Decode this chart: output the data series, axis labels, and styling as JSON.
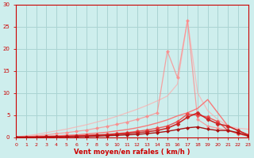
{
  "xlim": [
    0,
    23
  ],
  "ylim": [
    0,
    30
  ],
  "xlabel": "Vent moyen/en rafales ( km/h )",
  "xticks": [
    0,
    1,
    2,
    3,
    4,
    5,
    6,
    7,
    8,
    9,
    10,
    11,
    12,
    13,
    14,
    15,
    16,
    17,
    18,
    19,
    20,
    21,
    22,
    23
  ],
  "yticks": [
    0,
    5,
    10,
    15,
    20,
    25,
    30
  ],
  "bg_color": "#ceeeed",
  "grid_color": "#aad4d3",
  "lines": [
    {
      "comment": "lightest pink - broad triangle, peaks near x=17 at ~26.5, back to ~2 at x=23",
      "x": [
        0,
        1,
        2,
        3,
        4,
        5,
        6,
        7,
        8,
        9,
        10,
        11,
        12,
        13,
        14,
        15,
        16,
        17,
        18,
        19,
        20,
        21,
        22,
        23
      ],
      "y": [
        0,
        0.3,
        0.6,
        1.0,
        1.4,
        1.8,
        2.3,
        2.8,
        3.4,
        4.0,
        4.7,
        5.5,
        6.3,
        7.2,
        8.2,
        9.3,
        12.0,
        26.5,
        10.0,
        6.0,
        4.0,
        2.5,
        2.0,
        1.8
      ],
      "color": "#ffaaaa",
      "lw": 0.9,
      "marker": null,
      "alpha": 0.7
    },
    {
      "comment": "medium pink with markers - peaks at x=15 ~19.5, dip at x=16 ~13.5, x=17 ~26.5, down to near 0",
      "x": [
        0,
        1,
        2,
        3,
        4,
        5,
        6,
        7,
        8,
        9,
        10,
        11,
        12,
        13,
        14,
        15,
        16,
        17,
        18,
        19,
        20,
        21,
        22,
        23
      ],
      "y": [
        0,
        0.1,
        0.3,
        0.5,
        0.8,
        1.0,
        1.3,
        1.6,
        2.0,
        2.4,
        2.9,
        3.4,
        4.0,
        4.7,
        5.5,
        19.5,
        13.5,
        26.5,
        4.0,
        2.5,
        2.0,
        1.5,
        0.8,
        0.3
      ],
      "color": "#ff8888",
      "lw": 0.9,
      "marker": "D",
      "markersize": 2.0,
      "alpha": 0.75
    },
    {
      "comment": "salmon/orange-red - peaks around x=19 ~8.5, back to near 0",
      "x": [
        0,
        1,
        2,
        3,
        4,
        5,
        6,
        7,
        8,
        9,
        10,
        11,
        12,
        13,
        14,
        15,
        16,
        17,
        18,
        19,
        20,
        21,
        22,
        23
      ],
      "y": [
        0,
        0.0,
        0.1,
        0.2,
        0.3,
        0.4,
        0.5,
        0.7,
        0.9,
        1.1,
        1.4,
        1.7,
        2.1,
        2.6,
        3.2,
        3.9,
        4.8,
        5.5,
        6.5,
        8.5,
        5.5,
        2.5,
        1.5,
        0.5
      ],
      "color": "#ff6666",
      "lw": 1.0,
      "marker": null,
      "alpha": 0.85
    },
    {
      "comment": "darker red with markers - relatively flat, peaks around x=17-18 ~5, ends near 0",
      "x": [
        0,
        1,
        2,
        3,
        4,
        5,
        6,
        7,
        8,
        9,
        10,
        11,
        12,
        13,
        14,
        15,
        16,
        17,
        18,
        19,
        20,
        21,
        22,
        23
      ],
      "y": [
        0,
        0.0,
        0.0,
        0.1,
        0.1,
        0.2,
        0.3,
        0.4,
        0.5,
        0.6,
        0.8,
        1.0,
        1.3,
        1.6,
        2.0,
        2.5,
        3.5,
        5.2,
        5.0,
        4.5,
        3.5,
        1.5,
        0.8,
        0.2
      ],
      "color": "#ee4444",
      "lw": 1.0,
      "marker": "D",
      "markersize": 2.5,
      "alpha": 0.9
    },
    {
      "comment": "dark red with markers - flat low line peaking ~x=18 ~5.5, stays low",
      "x": [
        0,
        1,
        2,
        3,
        4,
        5,
        6,
        7,
        8,
        9,
        10,
        11,
        12,
        13,
        14,
        15,
        16,
        17,
        18,
        19,
        20,
        21,
        22,
        23
      ],
      "y": [
        0,
        0.0,
        0.0,
        0.05,
        0.1,
        0.15,
        0.2,
        0.3,
        0.4,
        0.5,
        0.65,
        0.8,
        1.0,
        1.2,
        1.5,
        2.0,
        3.0,
        4.5,
        5.5,
        4.0,
        3.0,
        2.5,
        1.5,
        0.5
      ],
      "color": "#cc2222",
      "lw": 1.1,
      "marker": "D",
      "markersize": 2.5,
      "alpha": 1.0
    },
    {
      "comment": "darkest/almost maroon - very flat, peaks ~x=18-19 ~2, near 0 at end",
      "x": [
        0,
        1,
        2,
        3,
        4,
        5,
        6,
        7,
        8,
        9,
        10,
        11,
        12,
        13,
        14,
        15,
        16,
        17,
        18,
        19,
        20,
        21,
        22,
        23
      ],
      "y": [
        0,
        0.0,
        0.0,
        0.05,
        0.05,
        0.1,
        0.1,
        0.15,
        0.2,
        0.3,
        0.4,
        0.5,
        0.6,
        0.8,
        1.0,
        1.3,
        1.7,
        2.1,
        2.3,
        1.8,
        1.5,
        1.5,
        1.0,
        0.3
      ],
      "color": "#aa1111",
      "lw": 1.0,
      "marker": "D",
      "markersize": 2.0,
      "alpha": 1.0
    }
  ],
  "axis_color": "#cc0000",
  "tick_color": "#cc0000",
  "label_color": "#cc0000"
}
